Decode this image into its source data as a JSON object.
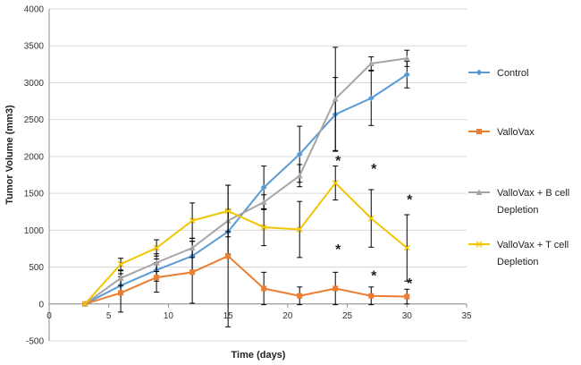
{
  "chart_data": {
    "type": "line",
    "title": "",
    "xlabel": "Time (days)",
    "ylabel": "Tumor Volume (mm3)",
    "xlim": [
      0,
      35
    ],
    "ylim": [
      -500,
      4000
    ],
    "xticks": [
      0,
      5,
      10,
      15,
      20,
      25,
      30,
      35
    ],
    "yticks": [
      -500,
      0,
      500,
      1000,
      1500,
      2000,
      2500,
      3000,
      3500,
      4000
    ],
    "grid": "horizontal",
    "legend_position": "right",
    "series": [
      {
        "name": "Control",
        "color": "#5b9bd5",
        "marker": "diamond",
        "x": [
          3,
          6,
          9,
          12,
          15,
          18,
          21,
          24,
          27,
          30
        ],
        "y": [
          0,
          250,
          460,
          650,
          980,
          1580,
          2030,
          2570,
          2790,
          3110
        ],
        "err": [
          0,
          120,
          150,
          200,
          300,
          290,
          380,
          500,
          370,
          180
        ]
      },
      {
        "name": "ValloVax",
        "color": "#ed7d31",
        "marker": "square",
        "x": [
          3,
          6,
          9,
          12,
          15,
          18,
          21,
          24,
          27,
          30
        ],
        "y": [
          0,
          150,
          360,
          430,
          650,
          210,
          110,
          210,
          110,
          100
        ],
        "err": [
          0,
          260,
          200,
          420,
          960,
          220,
          120,
          220,
          120,
          100
        ]
      },
      {
        "name": "ValloVax + B cell\nDepletion",
        "color": "#a5a5a5",
        "marker": "triangle",
        "x": [
          3,
          6,
          9,
          12,
          15,
          18,
          21,
          24,
          27,
          30
        ],
        "y": [
          0,
          350,
          560,
          760,
          1130,
          1380,
          1740,
          2780,
          3260,
          3330
        ],
        "err": [
          0,
          100,
          120,
          130,
          150,
          100,
          150,
          700,
          90,
          110
        ]
      },
      {
        "name": "ValloVax + T cell\nDepletion",
        "color": "#f2c500",
        "marker": "x",
        "x": [
          3,
          6,
          9,
          12,
          15,
          18,
          21,
          24,
          27,
          30
        ],
        "y": [
          0,
          540,
          760,
          1130,
          1260,
          1040,
          1010,
          1640,
          1160,
          760
        ],
        "err": [
          0,
          80,
          110,
          240,
          350,
          250,
          380,
          230,
          390,
          450
        ]
      }
    ],
    "annotations": [
      {
        "text": "*",
        "x": 24,
        "y": 1950
      },
      {
        "text": "*",
        "x": 24,
        "y": 750
      },
      {
        "text": "*",
        "x": 27,
        "y": 1840
      },
      {
        "text": "*",
        "x": 27,
        "y": 390
      },
      {
        "text": "*",
        "x": 30,
        "y": 1420
      },
      {
        "text": "*",
        "x": 30,
        "y": 290
      }
    ]
  }
}
